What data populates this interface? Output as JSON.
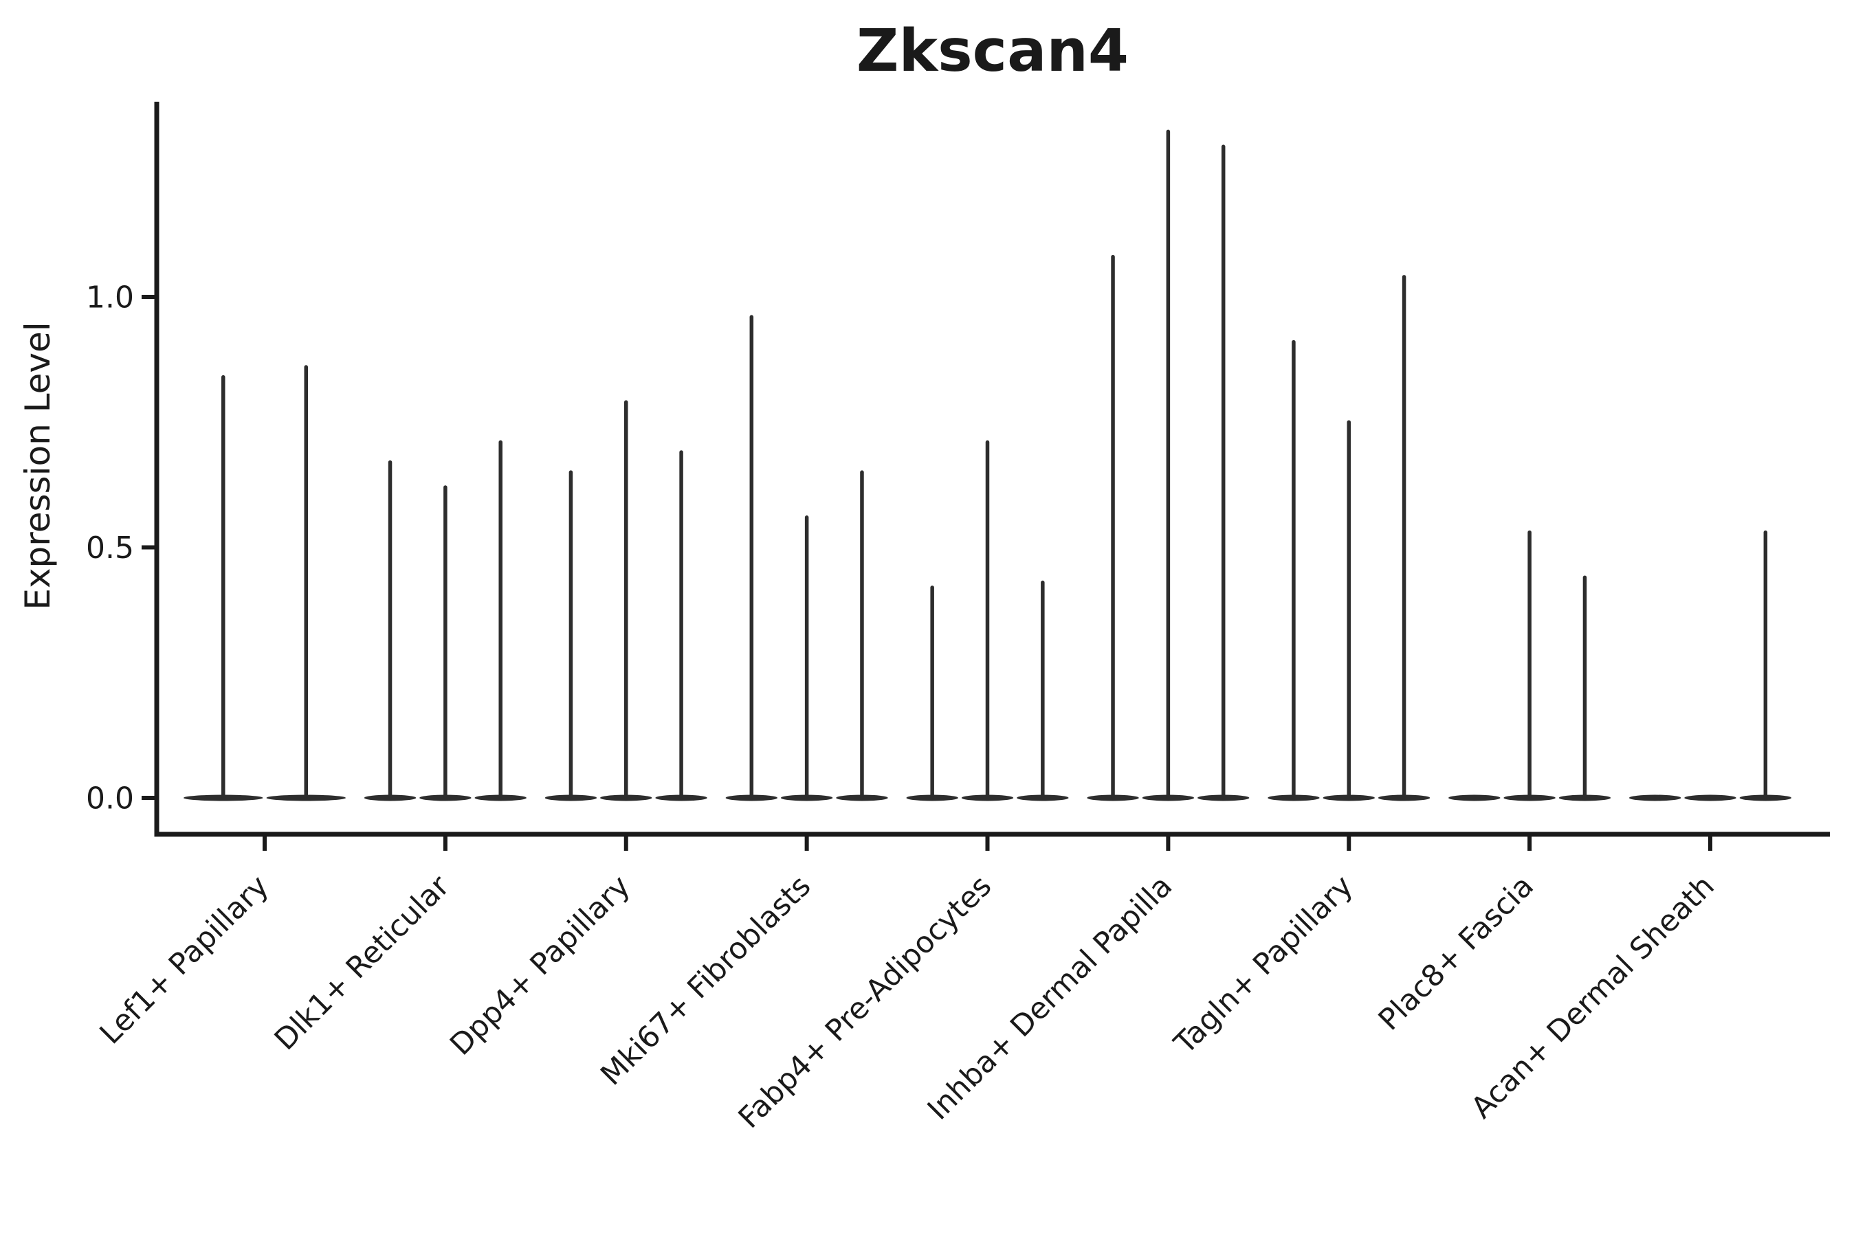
{
  "title": "Zkscan4",
  "y_axis": {
    "label": "Expression Level",
    "ticks": [
      {
        "label": "0.0",
        "value": 0.0
      },
      {
        "label": "0.5",
        "value": 0.5
      },
      {
        "label": "1.0",
        "value": 1.0
      }
    ]
  },
  "colors": {
    "violin": "#2d2d2d",
    "axis": "#1a1a1a",
    "background": "#ffffff"
  },
  "chart_data": {
    "type": "violin",
    "title": "Zkscan4",
    "xlabel": "",
    "ylabel": "Expression Level",
    "ylim": [
      -0.07,
      1.39
    ],
    "yticks": [
      0.0,
      0.5,
      1.0
    ],
    "grid": false,
    "legend": "none",
    "x_tick_rotation": 45,
    "note": "needle-thin violin plot; each category holds 2-3 violins, value = top of expression spike, 0 = flat violin with no spike",
    "categories": [
      "Lef1+ Papillary",
      "Dlk1+ Reticular",
      "Dpp4+ Papillary",
      "Mki67+ Fibroblasts",
      "Fabp4+ Pre-Adipocytes",
      "Inhba+ Dermal Papilla",
      "Tagln+ Papillary",
      "Plac8+ Fascia",
      "Acan+ Dermal Sheath"
    ],
    "groups": [
      {
        "category": "Lef1+ Papillary",
        "violin_maxima": [
          0.84,
          0.86
        ]
      },
      {
        "category": "Dlk1+ Reticular",
        "violin_maxima": [
          0.67,
          0.62,
          0.71
        ]
      },
      {
        "category": "Dpp4+ Papillary",
        "violin_maxima": [
          0.65,
          0.79,
          0.69
        ]
      },
      {
        "category": "Mki67+ Fibroblasts",
        "violin_maxima": [
          0.96,
          0.56,
          0.65
        ]
      },
      {
        "category": "Fabp4+ Pre-Adipocytes",
        "violin_maxima": [
          0.42,
          0.71,
          0.43
        ]
      },
      {
        "category": "Inhba+ Dermal Papilla",
        "violin_maxima": [
          1.08,
          1.33,
          1.3
        ]
      },
      {
        "category": "Tagln+ Papillary",
        "violin_maxima": [
          0.91,
          0.75,
          1.04
        ]
      },
      {
        "category": "Plac8+ Fascia",
        "violin_maxima": [
          0,
          0.53,
          0.44
        ]
      },
      {
        "category": "Acan+ Dermal Sheath",
        "violin_maxima": [
          0,
          0,
          0.53
        ]
      }
    ]
  }
}
